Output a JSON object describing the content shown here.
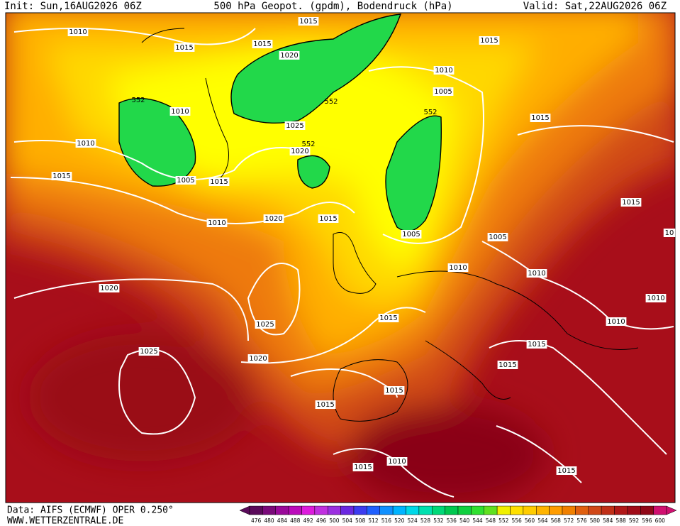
{
  "header": {
    "init": "Init: Sun,16AUG2026 06Z",
    "title": "500 hPa Geopot. (gpdm), Bodendruck (hPa)",
    "valid": "Valid: Sat,22AUG2026 06Z"
  },
  "isobar_labels": [
    "1010",
    "1015",
    "1015",
    "1015",
    "1020",
    "552",
    "1010",
    "552",
    "1025",
    "552",
    "1020",
    "1010",
    "1015",
    "1005",
    "1015",
    "1010",
    "1020",
    "1015",
    "1015",
    "1010",
    "1005",
    "552",
    "1015",
    "1015",
    "10",
    "1005",
    "1005",
    "1010",
    "1010",
    "1020",
    "1025",
    "1015",
    "1010",
    "1010",
    "1015",
    "1025",
    "1020",
    "1015",
    "1015",
    "1015",
    "1015",
    "1010",
    "1015"
  ],
  "colorbar": {
    "labels": [
      476,
      480,
      484,
      488,
      492,
      496,
      500,
      504,
      508,
      512,
      516,
      520,
      524,
      528,
      532,
      536,
      540,
      544,
      548,
      552,
      556,
      560,
      564,
      568,
      572,
      576,
      580,
      584,
      588,
      592,
      596,
      600
    ],
    "colors": [
      "#5a0a5a",
      "#7a0a7a",
      "#9a0a9a",
      "#bb0bbb",
      "#dd1bdd",
      "#c030e0",
      "#9b30e0",
      "#6a28e0",
      "#3c3cf0",
      "#2060ff",
      "#1090ff",
      "#00b4ff",
      "#00d8e8",
      "#00e0b0",
      "#00d878",
      "#00c850",
      "#10d040",
      "#30e030",
      "#60e020",
      "#f0f000",
      "#ffe000",
      "#ffcc00",
      "#ffb400",
      "#ff9c00",
      "#f08000",
      "#e06010",
      "#d04818",
      "#c03018",
      "#b01818",
      "#a00c18",
      "#900818",
      "#d01070"
    ]
  },
  "footer": {
    "data": "Data: AIFS (ECMWF) OPER 0.250°",
    "site": "WWW.WETTERZENTRALE.DE"
  }
}
